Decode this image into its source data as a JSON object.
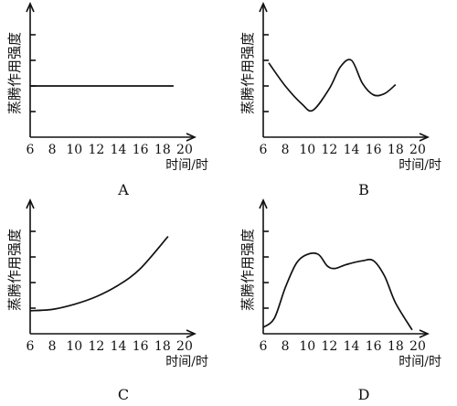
{
  "chart_data": [
    {
      "type": "line",
      "panel_label": "A",
      "ylabel": "蒸腾作用强度",
      "xlabel_unit": "时间/时",
      "x_ticks": [
        "6",
        "8",
        "10",
        "12",
        "14",
        "16",
        "18",
        "20"
      ],
      "xlim": [
        6,
        20.5
      ],
      "ylim": [
        0,
        10
      ],
      "y_ticks": [
        2,
        4,
        6,
        8
      ],
      "grid": false,
      "x": [
        6,
        19
      ],
      "y": [
        4,
        4
      ]
    },
    {
      "type": "line",
      "panel_label": "B",
      "ylabel": "蒸腾作用强度",
      "xlabel_unit": "时间/时",
      "x_ticks": [
        "6",
        "8",
        "10",
        "12",
        "14",
        "16",
        "18",
        "20"
      ],
      "xlim": [
        6,
        20.5
      ],
      "ylim": [
        0,
        10
      ],
      "y_ticks": [
        2,
        4,
        6,
        8
      ],
      "grid": false,
      "x": [
        6.5,
        8,
        9.5,
        10.5,
        12,
        13,
        14,
        15,
        16,
        17,
        18
      ],
      "y": [
        5.8,
        4.0,
        2.6,
        2.1,
        3.8,
        5.5,
        6.0,
        4.2,
        3.3,
        3.4,
        4.1
      ]
    },
    {
      "type": "line",
      "panel_label": "C",
      "ylabel": "蒸腾作用强度",
      "xlabel_unit": "时间/时",
      "x_ticks": [
        "6",
        "8",
        "10",
        "12",
        "14",
        "16",
        "18",
        "20"
      ],
      "xlim": [
        6,
        20.5
      ],
      "ylim": [
        0,
        10
      ],
      "y_ticks": [
        2,
        4,
        6,
        8
      ],
      "grid": false,
      "x": [
        6,
        8,
        10,
        12,
        14,
        16,
        18.5
      ],
      "y": [
        1.8,
        1.9,
        2.3,
        2.9,
        3.8,
        5.1,
        7.6
      ]
    },
    {
      "type": "line",
      "panel_label": "D",
      "ylabel": "蒸腾作用强度",
      "xlabel_unit": "时间/时",
      "x_ticks": [
        "6",
        "8",
        "10",
        "12",
        "14",
        "16",
        "18",
        "20"
      ],
      "xlim": [
        6,
        20.5
      ],
      "ylim": [
        0,
        10
      ],
      "y_ticks": [
        2,
        4,
        6,
        8
      ],
      "grid": false,
      "x": [
        6,
        7,
        8,
        9,
        10,
        11,
        11.8,
        12.5,
        13.5,
        15,
        16,
        17,
        18,
        19.5
      ],
      "y": [
        0.5,
        1.2,
        3.6,
        5.5,
        6.2,
        6.2,
        5.3,
        5.1,
        5.4,
        5.7,
        5.7,
        4.5,
        2.4,
        0.3
      ]
    }
  ]
}
